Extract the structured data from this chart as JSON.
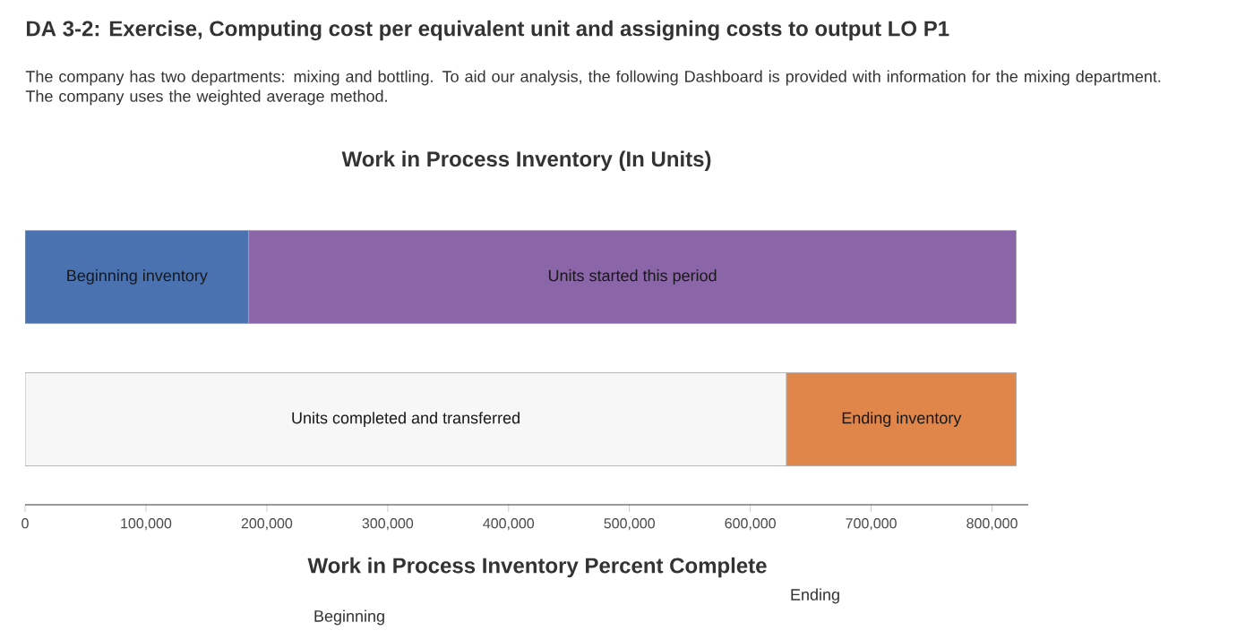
{
  "chart_data": {
    "type": "bar",
    "orientation": "horizontal",
    "stacked": true,
    "title": "Work in Process Inventory (In Units)",
    "categories": [
      null,
      null
    ],
    "series": [
      {
        "colors": [
          "#4a72b0",
          "#f7f7f7"
        ],
        "values": [
          185000,
          630000
        ],
        "value_labels": [
          "Beginning inventory",
          "Units completed and transferred"
        ]
      },
      {
        "colors": [
          "#8a65a8",
          "#e0864a"
        ],
        "values": [
          635000,
          190000
        ],
        "value_labels": [
          "Units started this period",
          "Ending inventory"
        ]
      }
    ],
    "xlim": [
      0,
      830000
    ],
    "xticks": [
      {
        "value": 0,
        "label": "0"
      },
      {
        "value": 100000,
        "label": "100,000"
      },
      {
        "value": 200000,
        "label": "200,000"
      },
      {
        "value": 300000,
        "label": "300,000"
      },
      {
        "value": 400000,
        "label": "400,000"
      },
      {
        "value": 500000,
        "label": "500,000"
      },
      {
        "value": 600000,
        "label": "600,000"
      },
      {
        "value": 700000,
        "label": "700,000"
      },
      {
        "value": 800000,
        "label": "800,000"
      }
    ],
    "annotations": [
      "DA 3-2: Exercise, Computing cost per equivalent unit and assigning costs to output LO P1",
      "The company has two departments: mixing and bottling. To aid our analysis, the following Dashboard is provided with information for the mixing department. The company uses the weighted average method.",
      "Work in Process Inventory Percent Complete",
      "Beginning",
      "Ending"
    ]
  }
}
